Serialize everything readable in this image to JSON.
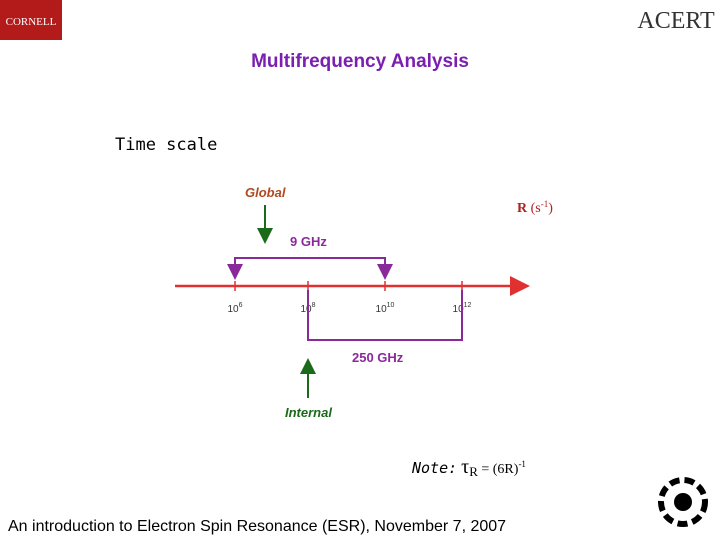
{
  "logos": {
    "left": "CORNELL",
    "right": "ACERT"
  },
  "title": "Multifrequency Analysis",
  "time_scale_label": "Time scale",
  "axis": {
    "label": {
      "symbol": "R",
      "unit_open": "(s",
      "unit_exp": "-1",
      "unit_close": ")"
    },
    "ticks": [
      {
        "base": "10",
        "exp": "6"
      },
      {
        "base": "10",
        "exp": "8"
      },
      {
        "base": "10",
        "exp": "10"
      },
      {
        "base": "10",
        "exp": "12"
      }
    ]
  },
  "global": {
    "label": "Global",
    "band": "9 GHz"
  },
  "internal": {
    "label": "Internal",
    "band": "250 GHz"
  },
  "note": {
    "prefix": "Note:",
    "tau": "τ",
    "sub": "R",
    "rest": "= (6R)",
    "exp": "-1"
  },
  "footer": "An introduction to Electron Spin Resonance (ESR), November 7, 2007"
}
